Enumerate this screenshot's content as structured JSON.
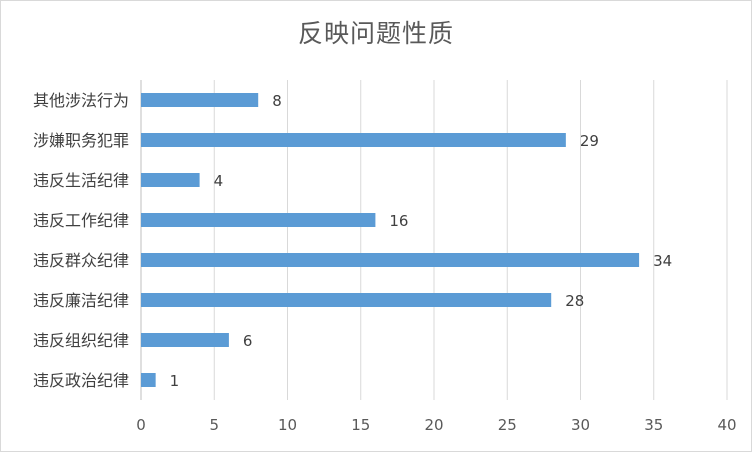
{
  "chart_data": {
    "type": "bar",
    "orientation": "horizontal",
    "title": "反映问题性质",
    "categories": [
      "其他涉法行为",
      "涉嫌职务犯罪",
      "违反生活纪律",
      "违反工作纪律",
      "违反群众纪律",
      "违反廉洁纪律",
      "违反组织纪律",
      "违反政治纪律"
    ],
    "values": [
      8,
      29,
      4,
      16,
      34,
      28,
      6,
      1
    ],
    "xlim": [
      0,
      40
    ],
    "xticks": [
      0,
      5,
      10,
      15,
      20,
      25,
      30,
      35,
      40
    ],
    "grid": "vertical",
    "data_labels": true,
    "legend": "none",
    "bar_color": "#5b9bd5",
    "grid_color": "#d9d9d9"
  }
}
